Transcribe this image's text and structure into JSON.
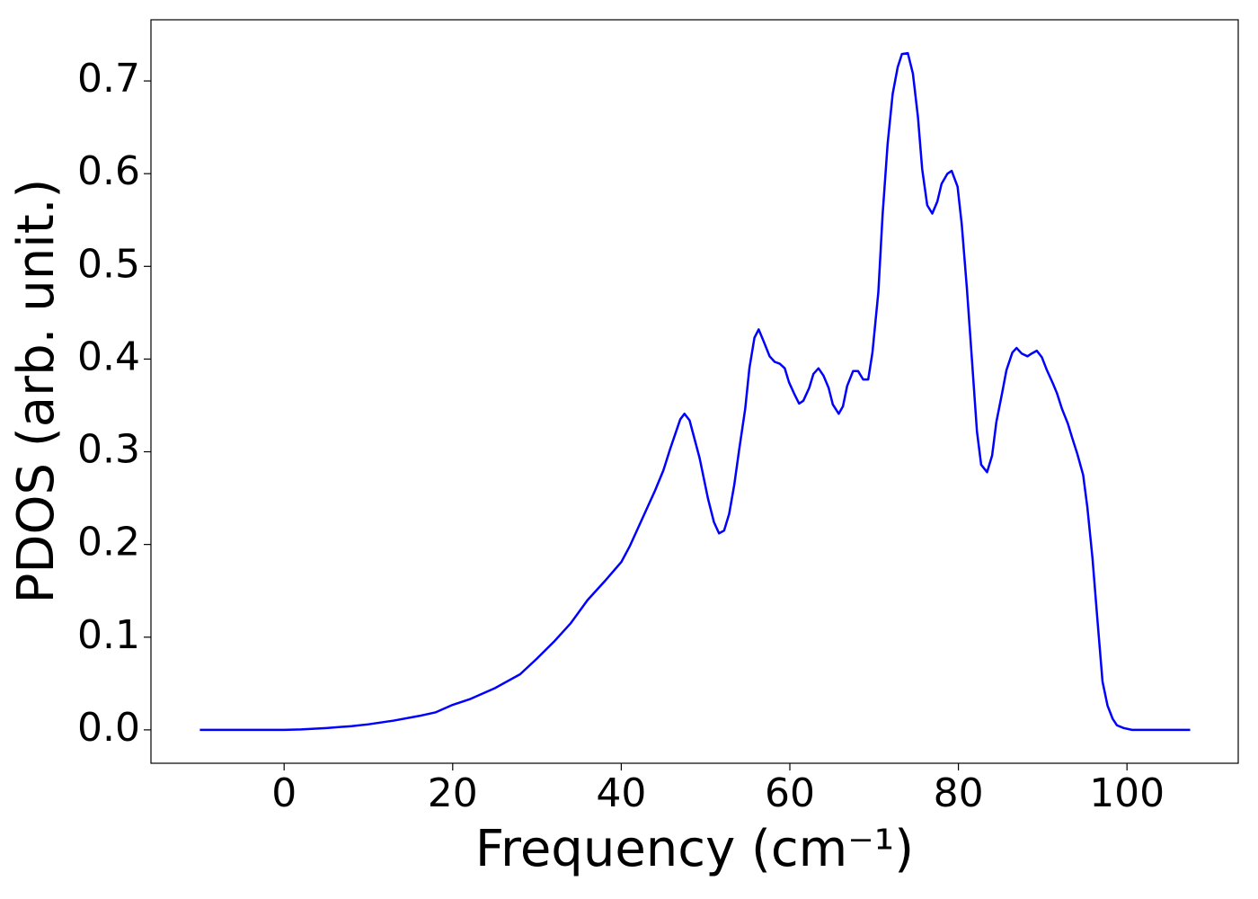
{
  "chart_data": {
    "type": "line",
    "x_label": "Frequency (cm⁻¹)",
    "y_label": "PDOS (arb. unit.)",
    "color": "#0000ff",
    "x": [
      -10,
      0,
      2,
      5,
      8,
      10,
      13,
      16,
      18,
      20,
      22,
      25,
      28,
      30,
      32,
      34,
      36,
      38,
      40,
      41,
      42,
      43,
      44,
      45,
      45.8,
      47,
      47.5,
      48.1,
      48.6,
      49.3,
      50.3,
      51,
      51.6,
      52.2,
      52.8,
      53.4,
      54,
      54.7,
      55.2,
      55.8,
      56.3,
      56.9,
      57.6,
      58.2,
      58.8,
      59.4,
      59.9,
      60.6,
      61.1,
      61.6,
      62.3,
      62.8,
      63.4,
      64,
      64.6,
      65.1,
      65.8,
      66.3,
      66.8,
      67.5,
      68.1,
      68.7,
      69.3,
      69.8,
      70.5,
      71,
      71.6,
      72.2,
      72.8,
      73.3,
      74,
      74.6,
      75.2,
      75.7,
      76.3,
      76.9,
      77.5,
      78,
      78.7,
      79.2,
      79.9,
      80.4,
      81,
      81.6,
      82.2,
      82.7,
      83.4,
      84,
      84.5,
      85.2,
      85.7,
      86.4,
      86.9,
      87.5,
      88.2,
      88.7,
      89.3,
      89.9,
      90.5,
      91.2,
      91.7,
      92.3,
      93,
      93.5,
      94.1,
      94.8,
      95.3,
      95.9,
      96.5,
      97.1,
      97.7,
      98.3,
      98.8,
      99.6,
      100.6,
      107.5
    ],
    "values": [
      0,
      0,
      0.0005,
      0.002,
      0.004,
      0.006,
      0.01,
      0.015,
      0.019,
      0.027,
      0.033,
      0.045,
      0.06,
      0.077,
      0.095,
      0.115,
      0.14,
      0.16,
      0.181,
      0.198,
      0.218,
      0.238,
      0.258,
      0.28,
      0.303,
      0.335,
      0.341,
      0.334,
      0.317,
      0.293,
      0.249,
      0.224,
      0.212,
      0.215,
      0.233,
      0.264,
      0.303,
      0.346,
      0.39,
      0.423,
      0.432,
      0.419,
      0.403,
      0.397,
      0.395,
      0.39,
      0.375,
      0.361,
      0.352,
      0.355,
      0.369,
      0.384,
      0.39,
      0.382,
      0.369,
      0.351,
      0.341,
      0.349,
      0.371,
      0.387,
      0.387,
      0.378,
      0.378,
      0.407,
      0.472,
      0.555,
      0.632,
      0.686,
      0.715,
      0.729,
      0.73,
      0.708,
      0.661,
      0.605,
      0.566,
      0.557,
      0.57,
      0.589,
      0.6,
      0.603,
      0.586,
      0.545,
      0.477,
      0.4,
      0.322,
      0.286,
      0.278,
      0.296,
      0.332,
      0.364,
      0.388,
      0.407,
      0.412,
      0.406,
      0.403,
      0.406,
      0.409,
      0.402,
      0.388,
      0.374,
      0.363,
      0.346,
      0.33,
      0.315,
      0.298,
      0.275,
      0.24,
      0.186,
      0.118,
      0.052,
      0.026,
      0.012,
      0.005,
      0.002,
      0,
      0
    ],
    "xlim": [
      -15.8,
      113.2
    ],
    "ylim": [
      -0.036,
      0.766
    ],
    "xticks": [
      0,
      20,
      40,
      60,
      80,
      100
    ],
    "yticks": [
      {
        "value": 0,
        "label": "0.0"
      },
      0.1,
      0.2,
      0.3,
      0.4,
      0.5,
      0.6,
      0.7
    ]
  }
}
